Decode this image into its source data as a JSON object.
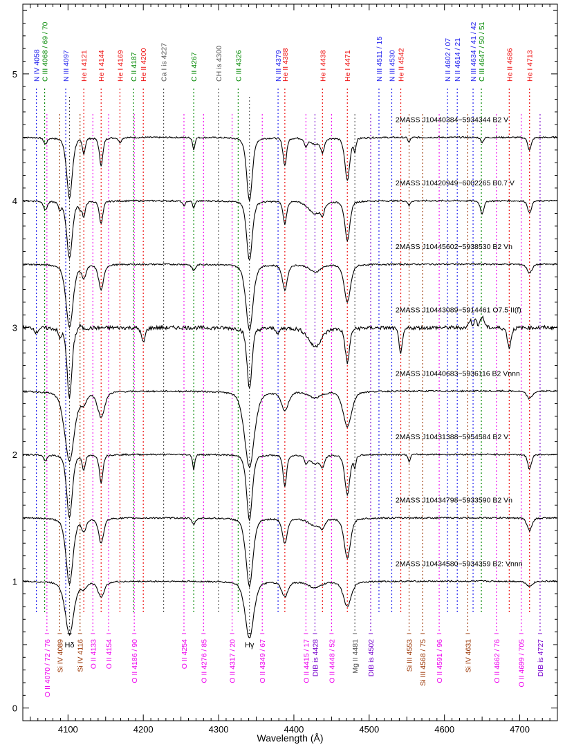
{
  "chart_data": {
    "type": "line",
    "xlabel": "Wavelength (Å)",
    "ylabel": "",
    "xlim": [
      4040,
      4750
    ],
    "ylim": [
      -0.1,
      5.55
    ],
    "xticks": [
      4100,
      4200,
      4300,
      4400,
      4500,
      4600,
      4700
    ],
    "yticks": [
      0,
      1,
      2,
      3,
      4,
      5
    ],
    "colors": {
      "blue": "#2222ee",
      "green": "#008800",
      "red": "#ee1111",
      "gray": "#555555",
      "magenta": "#ee00ee",
      "brown": "#993300",
      "purple": "#7700cc",
      "black": "#000000"
    },
    "top_lines": [
      {
        "label": "N IV 4058",
        "x": 4058,
        "color": "blue"
      },
      {
        "label": "C III 4068 / 69 / 70",
        "x": 4069,
        "color": "green"
      },
      {
        "label": "N III 4097",
        "x": 4097,
        "color": "blue"
      },
      {
        "label": "He I 4121",
        "x": 4121,
        "color": "red"
      },
      {
        "label": "He I 4144",
        "x": 4144,
        "color": "red"
      },
      {
        "label": "He I 4169",
        "x": 4169,
        "color": "red"
      },
      {
        "label": "C II 4187",
        "x": 4187,
        "color": "green"
      },
      {
        "label": "He II 4200",
        "x": 4200,
        "color": "red"
      },
      {
        "label": "Ca I is 4227",
        "x": 4227,
        "color": "gray"
      },
      {
        "label": "C II 4267",
        "x": 4267,
        "color": "green"
      },
      {
        "label": "CH is 4300",
        "x": 4300,
        "color": "gray"
      },
      {
        "label": "C III 4326",
        "x": 4326,
        "color": "green"
      },
      {
        "label": "N III 4379",
        "x": 4379,
        "color": "blue"
      },
      {
        "label": "He II 4388",
        "x": 4388,
        "color": "red"
      },
      {
        "label": "He I 4438",
        "x": 4438,
        "color": "red"
      },
      {
        "label": "He I 4471",
        "x": 4471,
        "color": "red"
      },
      {
        "label": "N III 4511 / 15",
        "x": 4513,
        "color": "blue"
      },
      {
        "label": "N III 4530",
        "x": 4530,
        "color": "blue"
      },
      {
        "label": "He II 4542",
        "x": 4542,
        "color": "red"
      },
      {
        "label": "N II 4602 / 07",
        "x": 4604,
        "color": "blue"
      },
      {
        "label": "N II 4614 / 21",
        "x": 4617,
        "color": "blue"
      },
      {
        "label": "N III 4634 / 41 / 42",
        "x": 4638,
        "color": "blue"
      },
      {
        "label": "C III 4647 / 50 / 51",
        "x": 4649,
        "color": "green"
      },
      {
        "label": "He II 4686",
        "x": 4686,
        "color": "red"
      },
      {
        "label": "He I 4713",
        "x": 4713,
        "color": "red"
      }
    ],
    "bottom_lines": [
      {
        "label": "O II 4070 / 72 / 76",
        "x": 4072,
        "color": "magenta"
      },
      {
        "label": "Si IV 4089",
        "x": 4089,
        "color": "brown"
      },
      {
        "label": "Hδ",
        "x": 4102,
        "color": "black"
      },
      {
        "label": "Si IV 4116",
        "x": 4116,
        "color": "brown"
      },
      {
        "label": "O II 4133",
        "x": 4133,
        "color": "magenta"
      },
      {
        "label": "O II 4154",
        "x": 4154,
        "color": "magenta"
      },
      {
        "label": "O II 4186 / 90",
        "x": 4188,
        "color": "magenta"
      },
      {
        "label": "O II 4254",
        "x": 4254,
        "color": "magenta"
      },
      {
        "label": "O II 4276 / 85",
        "x": 4280,
        "color": "magenta"
      },
      {
        "label": "O II 4317 / 20",
        "x": 4318,
        "color": "magenta"
      },
      {
        "label": "Hγ",
        "x": 4341,
        "color": "black"
      },
      {
        "label": "O II 4349 / 67",
        "x": 4358,
        "color": "magenta"
      },
      {
        "label": "O II 4415 / 17",
        "x": 4416,
        "color": "magenta"
      },
      {
        "label": "DIB is 4428",
        "x": 4428,
        "color": "purple"
      },
      {
        "label": "O II 4448 / 52",
        "x": 4450,
        "color": "magenta"
      },
      {
        "label": "Mg II 4481",
        "x": 4481,
        "color": "gray"
      },
      {
        "label": "DIB is 4502",
        "x": 4502,
        "color": "purple"
      },
      {
        "label": "Si III 4553",
        "x": 4553,
        "color": "brown"
      },
      {
        "label": "Si III 4568 / 75",
        "x": 4571,
        "color": "brown"
      },
      {
        "label": "O II 4591 / 96",
        "x": 4593,
        "color": "magenta"
      },
      {
        "label": "Si IV 4631",
        "x": 4631,
        "color": "brown"
      },
      {
        "label": "O II 4662 / 76",
        "x": 4669,
        "color": "magenta"
      },
      {
        "label": "O II 4699 / 705",
        "x": 4702,
        "color": "magenta"
      },
      {
        "label": "DIB is 4727",
        "x": 4727,
        "color": "purple"
      }
    ],
    "spectra": [
      {
        "label": "2MASS J10440384−5934344 B2 V",
        "offset": 4.5,
        "lines": [
          [
            4102,
            0.48,
            4
          ],
          [
            4341,
            0.5,
            4
          ],
          [
            4121,
            0.12,
            2
          ],
          [
            4144,
            0.22,
            2.5
          ],
          [
            4169,
            0.04,
            2
          ],
          [
            4267,
            0.1,
            1.5
          ],
          [
            4388,
            0.22,
            2.5
          ],
          [
            4438,
            0.1,
            2.5
          ],
          [
            4471,
            0.34,
            3.5
          ],
          [
            4481,
            0.1,
            1.5
          ],
          [
            4553,
            0.04,
            1.5
          ],
          [
            4070,
            0.05,
            2.5
          ],
          [
            4416,
            0.06,
            2
          ],
          [
            4428,
            0.05,
            8
          ],
          [
            4713,
            0.1,
            2.5
          ],
          [
            4650,
            0.04,
            2
          ]
        ]
      },
      {
        "label": "2MASS J10420949−6002265 B0.7 V",
        "offset": 4.0,
        "lines": [
          [
            4102,
            0.45,
            4
          ],
          [
            4341,
            0.47,
            4
          ],
          [
            4121,
            0.12,
            2
          ],
          [
            4144,
            0.18,
            2.5
          ],
          [
            4089,
            0.06,
            2
          ],
          [
            4116,
            0.05,
            2
          ],
          [
            4267,
            0.06,
            1.5
          ],
          [
            4388,
            0.18,
            2.5
          ],
          [
            4438,
            0.07,
            2.5
          ],
          [
            4471,
            0.32,
            3.5
          ],
          [
            4428,
            0.1,
            9
          ],
          [
            4553,
            0.04,
            1.5
          ],
          [
            4650,
            0.1,
            2.5
          ],
          [
            4713,
            0.1,
            2.5
          ],
          [
            4070,
            0.07,
            2.5
          ],
          [
            4254,
            0.04,
            2
          ]
        ]
      },
      {
        "label": "2MASS J10445602−5938530 B2 Vn",
        "offset": 3.5,
        "lines": [
          [
            4102,
            0.5,
            5
          ],
          [
            4341,
            0.52,
            5
          ],
          [
            4121,
            0.1,
            3
          ],
          [
            4144,
            0.2,
            3.5
          ],
          [
            4388,
            0.2,
            3.5
          ],
          [
            4471,
            0.3,
            4.5
          ],
          [
            4428,
            0.06,
            8
          ],
          [
            4713,
            0.07,
            3.5
          ],
          [
            4267,
            0.05,
            2.5
          ]
        ]
      },
      {
        "label": "2MASS J10443089−5914461 O7.5 II(f)",
        "offset": 3.0,
        "lines": [
          [
            4102,
            0.55,
            3.5
          ],
          [
            4341,
            0.48,
            3.5
          ],
          [
            4089,
            0.07,
            2
          ],
          [
            4200,
            0.12,
            2.5
          ],
          [
            4471,
            0.28,
            3
          ],
          [
            4542,
            0.2,
            2.5
          ],
          [
            4686,
            0.16,
            2.5
          ],
          [
            4428,
            0.15,
            9
          ],
          [
            4379,
            0.05,
            2
          ],
          [
            4058,
            0.04,
            2
          ]
        ],
        "emission": [
          [
            4634,
            0.06,
            2
          ],
          [
            4641,
            0.06,
            2
          ],
          [
            4650,
            0.08,
            3
          ],
          [
            4116,
            0.03,
            2
          ]
        ]
      },
      {
        "label": "2MASS J10440683−5936116 B2 Vnnn",
        "offset": 2.5,
        "lines": [
          [
            4102,
            0.55,
            7
          ],
          [
            4341,
            0.6,
            7
          ],
          [
            4144,
            0.2,
            5
          ],
          [
            4388,
            0.15,
            5
          ],
          [
            4471,
            0.28,
            6
          ],
          [
            4121,
            0.08,
            4
          ],
          [
            4713,
            0.06,
            4
          ],
          [
            4428,
            0.05,
            9
          ]
        ]
      },
      {
        "label": "2MASS J10431388−5954584 B2 V",
        "offset": 2.0,
        "lines": [
          [
            4102,
            0.5,
            4
          ],
          [
            4341,
            0.52,
            4
          ],
          [
            4121,
            0.12,
            2
          ],
          [
            4144,
            0.22,
            2.5
          ],
          [
            4267,
            0.12,
            1.5
          ],
          [
            4388,
            0.25,
            2.5
          ],
          [
            4438,
            0.08,
            2.5
          ],
          [
            4471,
            0.32,
            3.5
          ],
          [
            4481,
            0.1,
            1.5
          ],
          [
            4553,
            0.06,
            1.5
          ],
          [
            4428,
            0.07,
            8
          ],
          [
            4713,
            0.12,
            2.5
          ],
          [
            4070,
            0.05,
            2.5
          ],
          [
            4416,
            0.05,
            2
          ]
        ]
      },
      {
        "label": "2MASS J10434798−5933590 B2 Vn",
        "offset": 1.5,
        "lines": [
          [
            4102,
            0.52,
            5
          ],
          [
            4341,
            0.54,
            5
          ],
          [
            4121,
            0.1,
            3
          ],
          [
            4144,
            0.2,
            3.5
          ],
          [
            4388,
            0.2,
            3.5
          ],
          [
            4471,
            0.32,
            4.5
          ],
          [
            4438,
            0.06,
            3
          ],
          [
            4428,
            0.06,
            9
          ],
          [
            4713,
            0.1,
            3.5
          ],
          [
            4267,
            0.05,
            2.5
          ]
        ]
      },
      {
        "label": "2MASS J10434580−5934359 B2: Vnnn",
        "offset": 1.0,
        "lines": [
          [
            4102,
            0.42,
            6
          ],
          [
            4341,
            0.45,
            6
          ],
          [
            4144,
            0.12,
            4.5
          ],
          [
            4388,
            0.12,
            4.5
          ],
          [
            4471,
            0.2,
            5.5
          ],
          [
            4428,
            0.05,
            9
          ],
          [
            4121,
            0.05,
            4
          ],
          [
            4713,
            0.04,
            4
          ]
        ]
      }
    ]
  }
}
